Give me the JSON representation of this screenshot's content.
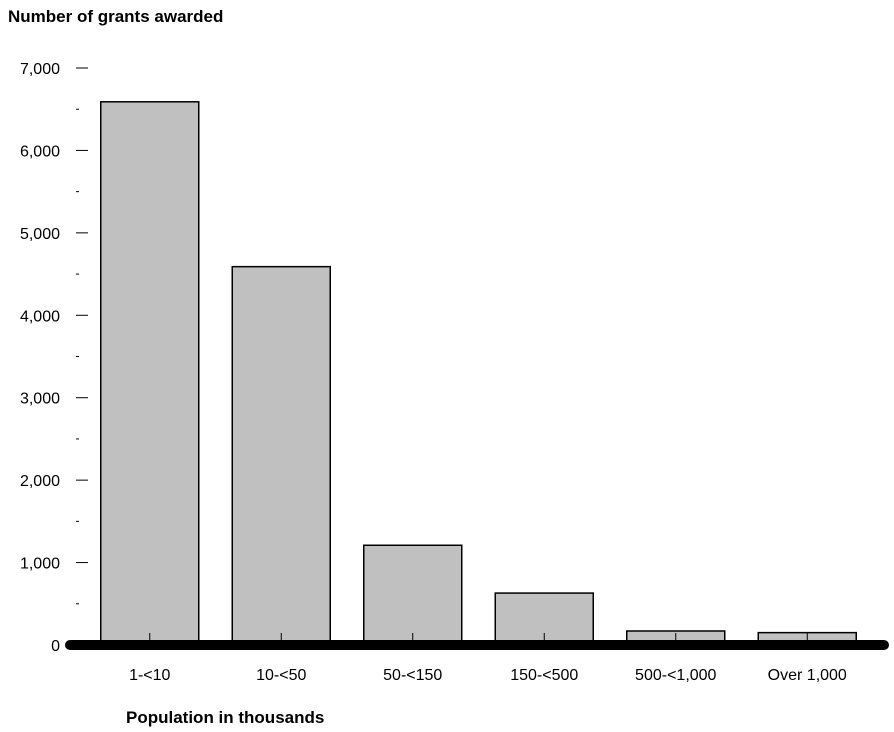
{
  "chart_data": {
    "type": "bar",
    "title": "",
    "ylabel": "Number of grants awarded",
    "xlabel": "Population in thousands",
    "categories": [
      "1-<10",
      "10-<50",
      "50-<150",
      "150-<500",
      "500-<1,000",
      "Over 1,000"
    ],
    "values": [
      6590,
      4590,
      1210,
      630,
      170,
      150
    ],
    "ylim": [
      0,
      7000
    ],
    "yticks": [
      {
        "value": 0,
        "label": "0"
      },
      {
        "value": 1000,
        "label": "1,000"
      },
      {
        "value": 2000,
        "label": "2,000"
      },
      {
        "value": 3000,
        "label": "3,000"
      },
      {
        "value": 4000,
        "label": "4,000"
      },
      {
        "value": 5000,
        "label": "5,000"
      },
      {
        "value": 6000,
        "label": "6,000"
      },
      {
        "value": 7000,
        "label": "7,000"
      }
    ],
    "minor_tick_step": 500,
    "grid": false,
    "legend": "none",
    "bar_color": "#c0c0c0",
    "bar_edge_color": "#000000",
    "axis_color": "#000000"
  }
}
